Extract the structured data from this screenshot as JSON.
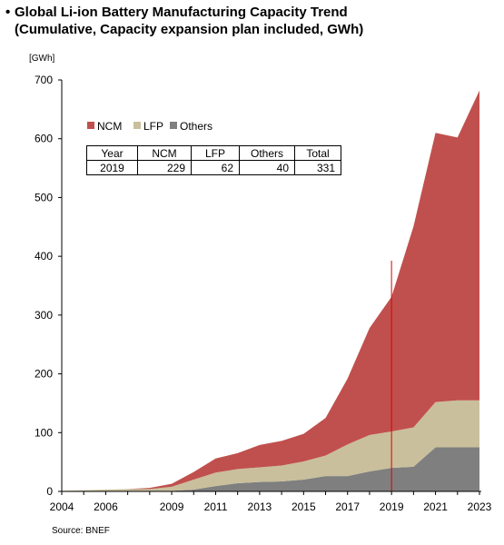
{
  "title": {
    "line1": "Global Li-ion Battery Manufacturing Capacity Trend",
    "line2": "(Cumulative, Capacity expansion plan included, GWh)"
  },
  "unit_label": "[GWh]",
  "source": "Source: BNEF",
  "summary_table": {
    "headers": [
      "Year",
      "NCM",
      "LFP",
      "Others",
      "Total"
    ],
    "row": [
      "2019",
      "229",
      "62",
      "40",
      "331"
    ]
  },
  "chart_data": {
    "type": "area",
    "stacked": true,
    "title": "Global Li-ion Battery Manufacturing Capacity Trend",
    "ylabel": "[GWh]",
    "ylim": [
      0,
      700
    ],
    "yticks": [
      0,
      100,
      200,
      300,
      400,
      500,
      600,
      700
    ],
    "x": [
      2004,
      2005,
      2006,
      2007,
      2008,
      2009,
      2010,
      2011,
      2012,
      2013,
      2014,
      2015,
      2016,
      2017,
      2018,
      2019,
      2020,
      2021,
      2022,
      2023
    ],
    "xticks": [
      "2004",
      "2006",
      "2009",
      "2011",
      "2013",
      "2015",
      "2017",
      "2019",
      "2021",
      "2023"
    ],
    "series": [
      {
        "name": "Others",
        "color": "#7f7f7f",
        "values": [
          0,
          0,
          0,
          0,
          0,
          1,
          3,
          9,
          14,
          16,
          17,
          20,
          26,
          26,
          34,
          40,
          42,
          75,
          75,
          75
        ]
      },
      {
        "name": "LFP",
        "color": "#c9bf9c",
        "values": [
          1,
          2,
          3,
          4,
          4,
          7,
          17,
          23,
          24,
          25,
          27,
          31,
          35,
          54,
          62,
          62,
          67,
          77,
          80,
          80
        ]
      },
      {
        "name": "NCM",
        "color": "#c0504d",
        "values": [
          0,
          0,
          0,
          0,
          2,
          5,
          13,
          24,
          27,
          38,
          42,
          47,
          64,
          112,
          182,
          229,
          342,
          458,
          447,
          527
        ]
      }
    ],
    "marker_line": {
      "x": 2019,
      "color": "#e00000"
    },
    "legend": [
      "NCM",
      "LFP",
      "Others"
    ],
    "legend_position": "top-left"
  }
}
